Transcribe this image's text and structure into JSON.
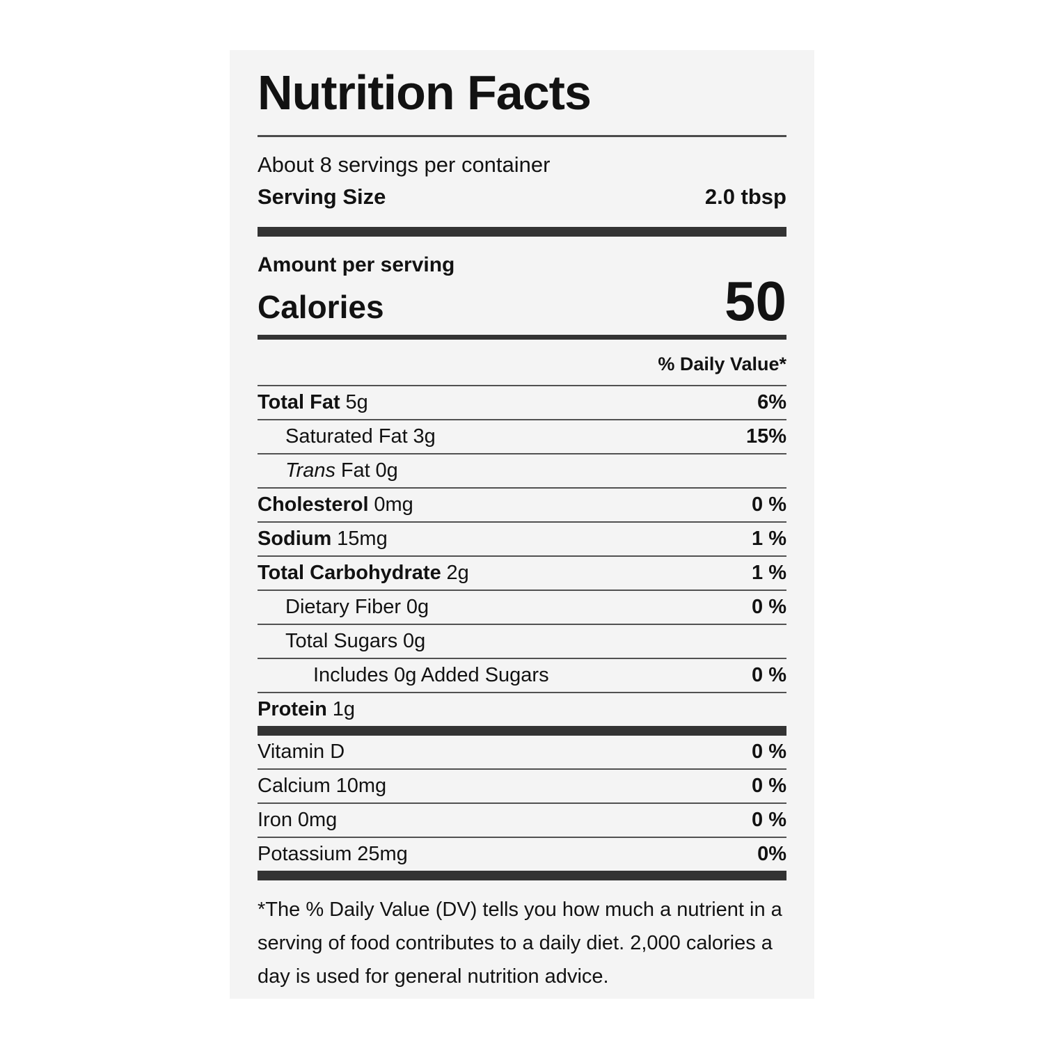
{
  "nutrition_label": {
    "title": "Nutrition Facts",
    "servings_per_container": "About 8 servings per container",
    "serving_size": {
      "label": "Serving Size",
      "value": "2.0 tbsp"
    },
    "amount_per_serving_label": "Amount per serving",
    "calories": {
      "label": "Calories",
      "value": "50"
    },
    "daily_value_header": "% Daily Value*",
    "nutrients": [
      {
        "name": "Total Fat",
        "amount": "5g",
        "daily_value": "6%"
      },
      {
        "name": "Saturated Fat",
        "amount": "3g",
        "daily_value": "15%"
      },
      {
        "name": "Trans",
        "name_suffix": "Fat",
        "amount": "0g",
        "daily_value": ""
      },
      {
        "name": "Cholesterol",
        "amount": "0mg",
        "daily_value": "0 %"
      },
      {
        "name": "Sodium",
        "amount": "15mg",
        "daily_value": "1 %"
      },
      {
        "name": "Total Carbohydrate",
        "amount": "2g",
        "daily_value": "1 %"
      },
      {
        "name": "Dietary Fiber",
        "amount": "0g",
        "daily_value": "0 %"
      },
      {
        "name": "Total Sugars",
        "amount": "0g",
        "daily_value": ""
      },
      {
        "name": "Includes 0g Added Sugars",
        "amount": "",
        "daily_value": "0 %"
      },
      {
        "name": "Protein",
        "amount": "1g",
        "daily_value": ""
      }
    ],
    "micronutrients": [
      {
        "name": "Vitamin D",
        "amount": "",
        "daily_value": "0 %"
      },
      {
        "name": "Calcium",
        "amount": "10mg",
        "daily_value": "0 %"
      },
      {
        "name": "Iron",
        "amount": "0mg",
        "daily_value": "0 %"
      },
      {
        "name": "Potassium",
        "amount": "25mg",
        "daily_value": "0%"
      }
    ],
    "footnote": "*The % Daily Value (DV) tells you how much a nutrient in a serving of food contributes to a daily diet. 2,000 calories a day is used for general nutrition advice."
  }
}
